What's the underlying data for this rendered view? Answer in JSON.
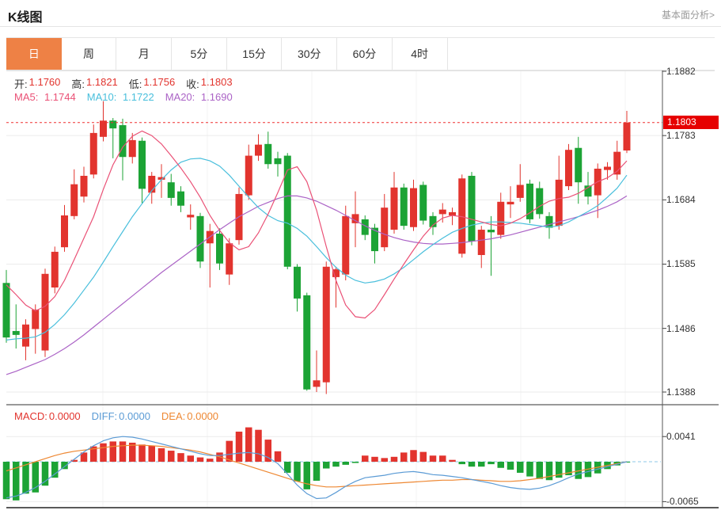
{
  "header": {
    "title": "K线图",
    "link": "基本面分析>"
  },
  "tabs": {
    "items": [
      {
        "label": "日",
        "selected": true
      },
      {
        "label": "周",
        "selected": false
      },
      {
        "label": "月",
        "selected": false
      },
      {
        "label": "5分",
        "selected": false
      },
      {
        "label": "15分",
        "selected": false
      },
      {
        "label": "30分",
        "selected": false
      },
      {
        "label": "60分",
        "selected": false
      },
      {
        "label": "4时",
        "selected": false
      }
    ]
  },
  "ohlc": {
    "open_label": "开:",
    "open": "1.1760",
    "high_label": "高:",
    "high": "1.1821",
    "low_label": "低:",
    "low": "1.1756",
    "close_label": "收:",
    "close": "1.1803"
  },
  "ma": {
    "ma5_label": "MA5:",
    "ma5": "1.1744",
    "ma10_label": "MA10:",
    "ma10": "1.1722",
    "ma20_label": "MA20:",
    "ma20": "1.1690"
  },
  "macd_header": {
    "macd_label": "MACD:",
    "macd": "0.0000",
    "diff_label": "DIFF:",
    "diff": "0.0000",
    "dea_label": "DEA:",
    "dea": "0.0000"
  },
  "price_axis": {
    "labels": [
      "1.1882",
      "1.1783",
      "1.1684",
      "1.1585",
      "1.1486",
      "1.1388"
    ],
    "current": "1.1803"
  },
  "macd_axis": {
    "top": "0.0041",
    "bottom": "-0.0065"
  },
  "colors": {
    "up": "#e2342e",
    "down": "#1ca335",
    "ma5": "#ea5176",
    "ma10": "#49bfdc",
    "ma20": "#ab63c6",
    "diff": "#5b9bd5",
    "dea": "#ee8833",
    "badge": "#e60000",
    "current_line": "#f03030",
    "zero_line": "#8cc8e8",
    "tab_selected": "#ee8145",
    "grid": "#ebebeb",
    "axis_line": "#555555"
  },
  "chart_data": {
    "type": "candlestick+macd",
    "title": "K线图 (daily K-line with MA5/MA10/MA20 and MACD)",
    "price_axis": {
      "min": 1.1388,
      "max": 1.1882,
      "ticks": [
        1.1882,
        1.1783,
        1.1684,
        1.1585,
        1.1486,
        1.1388
      ],
      "current_price": 1.1803
    },
    "macd_axis": {
      "ticks": [
        0.0041,
        -0.0065
      ]
    },
    "current_bar": {
      "open": 1.176,
      "high": 1.1821,
      "low": 1.1756,
      "close": 1.1803,
      "ma5": 1.1744,
      "ma10": 1.1722,
      "ma20": 1.169,
      "macd": 0.0,
      "diff": 0.0,
      "dea": 0.0
    },
    "candles": [
      [
        1.1556,
        1.1576,
        1.1464,
        1.1472
      ],
      [
        1.1482,
        1.1523,
        1.1455,
        1.1476
      ],
      [
        1.1458,
        1.15,
        1.1437,
        1.1492
      ],
      [
        1.1485,
        1.1523,
        1.1447,
        1.1515
      ],
      [
        1.1452,
        1.1578,
        1.1442,
        1.157
      ],
      [
        1.1549,
        1.1612,
        1.154,
        1.1604
      ],
      [
        1.1611,
        1.1676,
        1.1604,
        1.166
      ],
      [
        1.1659,
        1.1731,
        1.1654,
        1.1708
      ],
      [
        1.1689,
        1.1735,
        1.168,
        1.1721
      ],
      [
        1.1723,
        1.18,
        1.1717,
        1.1787
      ],
      [
        1.1781,
        1.1836,
        1.1774,
        1.1806
      ],
      [
        1.1806,
        1.181,
        1.1748,
        1.1794
      ],
      [
        1.1799,
        1.1809,
        1.1714,
        1.175
      ],
      [
        1.175,
        1.1787,
        1.174,
        1.1776
      ],
      [
        1.1775,
        1.178,
        1.1678,
        1.1701
      ],
      [
        1.1695,
        1.1727,
        1.1678,
        1.1721
      ],
      [
        1.1715,
        1.1739,
        1.1687,
        1.1719
      ],
      [
        1.1711,
        1.1724,
        1.1675,
        1.1687
      ],
      [
        1.1697,
        1.1705,
        1.1665,
        1.1675
      ],
      [
        1.1657,
        1.1677,
        1.1638,
        1.1661
      ],
      [
        1.1659,
        1.1664,
        1.1579,
        1.1589
      ],
      [
        1.1617,
        1.1647,
        1.1549,
        1.1636
      ],
      [
        1.1632,
        1.164,
        1.1576,
        1.1586
      ],
      [
        1.1569,
        1.1625,
        1.1553,
        1.1617
      ],
      [
        1.1622,
        1.1703,
        1.1615,
        1.1693
      ],
      [
        1.1691,
        1.1769,
        1.1684,
        1.1752
      ],
      [
        1.1752,
        1.1785,
        1.1744,
        1.1769
      ],
      [
        1.177,
        1.1789,
        1.1732,
        1.1739
      ],
      [
        1.1748,
        1.1758,
        1.172,
        1.1739
      ],
      [
        1.1752,
        1.1756,
        1.1577,
        1.1581
      ],
      [
        1.1581,
        1.1585,
        1.1512,
        1.1532
      ],
      [
        1.1537,
        1.1541,
        1.139,
        1.1392
      ],
      [
        1.1396,
        1.1452,
        1.1388,
        1.1406
      ],
      [
        1.1403,
        1.1589,
        1.1385,
        1.1581
      ],
      [
        1.1565,
        1.1581,
        1.1518,
        1.1577
      ],
      [
        1.1569,
        1.1675,
        1.156,
        1.1659
      ],
      [
        1.1648,
        1.1697,
        1.1611,
        1.1662
      ],
      [
        1.1654,
        1.166,
        1.1622,
        1.163
      ],
      [
        1.1641,
        1.1647,
        1.1586,
        1.1605
      ],
      [
        1.1611,
        1.1693,
        1.1605,
        1.1672
      ],
      [
        1.1638,
        1.1727,
        1.1632,
        1.1703
      ],
      [
        1.1703,
        1.1709,
        1.1638,
        1.1644
      ],
      [
        1.1642,
        1.1715,
        1.1636,
        1.1702
      ],
      [
        1.1707,
        1.1712,
        1.1646,
        1.1652
      ],
      [
        1.1659,
        1.1665,
        1.163,
        1.1642
      ],
      [
        1.1662,
        1.1679,
        1.1649,
        1.1669
      ],
      [
        1.166,
        1.1672,
        1.1645,
        1.1665
      ],
      [
        1.1601,
        1.1723,
        1.1595,
        1.1717
      ],
      [
        1.1721,
        1.1727,
        1.1614,
        1.162
      ],
      [
        1.1599,
        1.1644,
        1.1579,
        1.1638
      ],
      [
        1.1638,
        1.1659,
        1.1567,
        1.1634
      ],
      [
        1.163,
        1.1695,
        1.1624,
        1.1681
      ],
      [
        1.1677,
        1.1705,
        1.1656,
        1.1681
      ],
      [
        1.1687,
        1.1739,
        1.1681,
        1.1707
      ],
      [
        1.1709,
        1.1715,
        1.1648,
        1.1654
      ],
      [
        1.1702,
        1.1712,
        1.1655,
        1.1662
      ],
      [
        1.1659,
        1.1665,
        1.1624,
        1.1641
      ],
      [
        1.1644,
        1.1752,
        1.1638,
        1.1715
      ],
      [
        1.1705,
        1.177,
        1.1699,
        1.1761
      ],
      [
        1.1764,
        1.1781,
        1.1678,
        1.1711
      ],
      [
        1.1706,
        1.1727,
        1.1677,
        1.1689
      ],
      [
        1.1691,
        1.174,
        1.1656,
        1.1732
      ],
      [
        1.173,
        1.1742,
        1.1715,
        1.1735
      ],
      [
        1.1723,
        1.1775,
        1.1715,
        1.1758
      ],
      [
        1.176,
        1.1821,
        1.1756,
        1.1803
      ]
    ],
    "ma5": [
      1.1553,
      1.1538,
      1.1522,
      1.1513,
      1.152,
      1.1535,
      1.156,
      1.1592,
      1.1625,
      1.1658,
      1.17,
      1.1738,
      1.1765,
      1.1782,
      1.179,
      1.1783,
      1.177,
      1.1752,
      1.1733,
      1.1712,
      1.1688,
      1.166,
      1.1637,
      1.1618,
      1.1607,
      1.1612,
      1.1633,
      1.1662,
      1.1695,
      1.173,
      1.1735,
      1.1712,
      1.1668,
      1.1612,
      1.156,
      1.1522,
      1.1504,
      1.1502,
      1.1515,
      1.1538,
      1.1562,
      1.1585,
      1.1607,
      1.1628,
      1.1645,
      1.1656,
      1.166,
      1.1658,
      1.1654,
      1.165,
      1.1646,
      1.1644,
      1.1648,
      1.1655,
      1.1664,
      1.1674,
      1.1682,
      1.1686,
      1.1688,
      1.1694,
      1.1703,
      1.1712,
      1.1718,
      1.1728,
      1.1744
    ],
    "ma10": [
      1.1468,
      1.147,
      1.1471,
      1.1473,
      1.148,
      1.1492,
      1.1507,
      1.1525,
      1.1545,
      1.1565,
      1.1588,
      1.1612,
      1.1635,
      1.1658,
      1.1678,
      1.1698,
      1.1715,
      1.173,
      1.1742,
      1.1747,
      1.1748,
      1.1744,
      1.1736,
      1.1722,
      1.1705,
      1.1688,
      1.1672,
      1.166,
      1.1652,
      1.1648,
      1.164,
      1.1628,
      1.1612,
      1.1595,
      1.158,
      1.1568,
      1.156,
      1.1556,
      1.1558,
      1.1562,
      1.157,
      1.158,
      1.1592,
      1.1604,
      1.1615,
      1.1625,
      1.1634,
      1.164,
      1.1645,
      1.1648,
      1.165,
      1.165,
      1.1649,
      1.1648,
      1.1646,
      1.1644,
      1.1642,
      1.1644,
      1.165,
      1.1658,
      1.1666,
      1.1675,
      1.1688,
      1.1702,
      1.1722
    ],
    "ma20": [
      1.1415,
      1.142,
      1.1426,
      1.1432,
      1.1438,
      1.1446,
      1.1455,
      1.1465,
      1.1476,
      1.1488,
      1.15,
      1.1512,
      1.1524,
      1.1536,
      1.1548,
      1.156,
      1.1572,
      1.1583,
      1.1594,
      1.1605,
      1.1616,
      1.1627,
      1.1638,
      1.1648,
      1.1658,
      1.1666,
      1.1674,
      1.168,
      1.1686,
      1.169,
      1.169,
      1.1687,
      1.1682,
      1.1675,
      1.1668,
      1.166,
      1.1652,
      1.1644,
      1.1637,
      1.1631,
      1.1626,
      1.1622,
      1.1619,
      1.1617,
      1.1616,
      1.1616,
      1.1617,
      1.1618,
      1.162,
      1.1622,
      1.1624,
      1.1627,
      1.163,
      1.1634,
      1.1638,
      1.1642,
      1.1646,
      1.165,
      1.1654,
      1.1658,
      1.1663,
      1.1668,
      1.1674,
      1.1681,
      1.169
    ],
    "macd_hist": [
      -0.0061,
      -0.0063,
      -0.0052,
      -0.005,
      -0.0039,
      -0.0026,
      -0.0012,
      0.0003,
      0.0015,
      0.0025,
      0.003,
      0.0033,
      0.0033,
      0.0031,
      0.0028,
      0.0026,
      0.0022,
      0.0018,
      0.0014,
      0.001,
      0.0007,
      0.0005,
      0.0015,
      0.0034,
      0.0049,
      0.0056,
      0.0052,
      0.0036,
      0.0017,
      -0.0018,
      -0.0032,
      -0.0045,
      -0.0031,
      -0.0011,
      -0.0008,
      -0.0005,
      -0.0002,
      0.001,
      0.0008,
      0.0006,
      0.0008,
      0.0015,
      0.0019,
      0.0016,
      0.001,
      0.001,
      0.0003,
      -0.0004,
      -0.0008,
      -0.0008,
      -0.0004,
      -0.001,
      -0.0013,
      -0.0018,
      -0.0024,
      -0.0028,
      -0.003,
      -0.0026,
      -0.0022,
      -0.0028,
      -0.0025,
      -0.0019,
      -0.0012,
      -0.0006,
      0.0
    ],
    "diff_line": [
      -0.0059,
      -0.0056,
      -0.005,
      -0.0042,
      -0.0032,
      -0.002,
      -0.0008,
      0.0004,
      0.0016,
      0.0026,
      0.0034,
      0.0039,
      0.0041,
      0.004,
      0.0037,
      0.0033,
      0.0029,
      0.0025,
      0.0021,
      0.0017,
      0.0013,
      0.001,
      0.001,
      0.0012,
      0.0014,
      0.0015,
      0.0013,
      0.0007,
      -0.0003,
      -0.002,
      -0.0038,
      -0.0052,
      -0.006,
      -0.0059,
      -0.005,
      -0.004,
      -0.0032,
      -0.0026,
      -0.0024,
      -0.0022,
      -0.0019,
      -0.0017,
      -0.0016,
      -0.0018,
      -0.0021,
      -0.0022,
      -0.0024,
      -0.0026,
      -0.0029,
      -0.0032,
      -0.0035,
      -0.0039,
      -0.0042,
      -0.0044,
      -0.0045,
      -0.0043,
      -0.0039,
      -0.0033,
      -0.0026,
      -0.002,
      -0.0016,
      -0.0012,
      -0.0008,
      -0.0004,
      0.0
    ],
    "dea_line": [
      -0.0015,
      -0.001,
      -0.0005,
      0.0,
      0.0005,
      0.001,
      0.0014,
      0.0017,
      0.0019,
      0.0021,
      0.0023,
      0.0025,
      0.0026,
      0.0027,
      0.0027,
      0.0026,
      0.0025,
      0.0023,
      0.0021,
      0.0019,
      0.0016,
      0.0012,
      0.0008,
      0.0003,
      -0.0002,
      -0.0007,
      -0.0012,
      -0.0017,
      -0.0022,
      -0.0027,
      -0.0032,
      -0.0036,
      -0.0039,
      -0.0041,
      -0.0041,
      -0.004,
      -0.0039,
      -0.0038,
      -0.0037,
      -0.0036,
      -0.0035,
      -0.0034,
      -0.0033,
      -0.0032,
      -0.0031,
      -0.003,
      -0.003,
      -0.0029,
      -0.0029,
      -0.003,
      -0.0031,
      -0.0032,
      -0.0032,
      -0.0031,
      -0.0029,
      -0.0027,
      -0.0024,
      -0.0021,
      -0.0018,
      -0.0015,
      -0.0012,
      -0.0009,
      -0.0006,
      -0.0003,
      0.0
    ]
  }
}
